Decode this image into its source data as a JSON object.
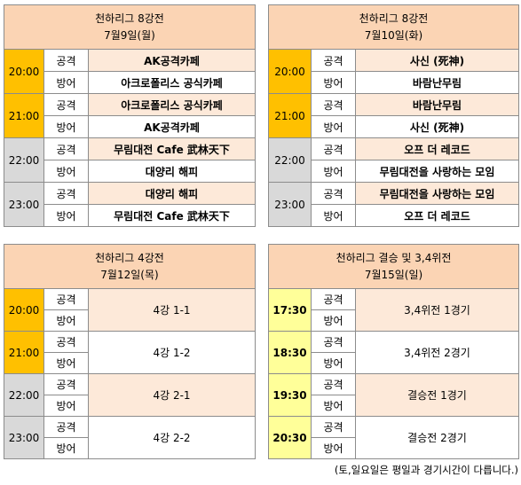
{
  "tables": [
    {
      "title": "천하리그 8강전",
      "date": "7월9일(월)",
      "slots": [
        {
          "time": "20:00",
          "rows": [
            {
              "role": "공격",
              "team": "AK공격카페"
            },
            {
              "role": "방어",
              "team": "아크로폴리스 공식카페"
            }
          ]
        },
        {
          "time": "21:00",
          "rows": [
            {
              "role": "공격",
              "team": "아크로폴리스 공식카페"
            },
            {
              "role": "방어",
              "team": "AK공격카페"
            }
          ]
        },
        {
          "time": "22:00",
          "rows": [
            {
              "role": "공격",
              "team": "무림대전 Cafe 武林天下"
            },
            {
              "role": "방어",
              "team": "대양리 해피"
            }
          ]
        },
        {
          "time": "23:00",
          "rows": [
            {
              "role": "공격",
              "team": "대양리 해피"
            },
            {
              "role": "방어",
              "team": "무림대전 Cafe 武林天下"
            }
          ]
        }
      ]
    },
    {
      "title": "천하리그 8강전",
      "date": "7월10일(화)",
      "slots": [
        {
          "time": "20:00",
          "rows": [
            {
              "role": "공격",
              "team": "사신 (死神)"
            },
            {
              "role": "방어",
              "team": "바람난무림"
            }
          ]
        },
        {
          "time": "21:00",
          "rows": [
            {
              "role": "공격",
              "team": "바람난무림"
            },
            {
              "role": "방어",
              "team": "사신 (死神)"
            }
          ]
        },
        {
          "time": "22:00",
          "rows": [
            {
              "role": "공격",
              "team": "오프 더 레코드"
            },
            {
              "role": "방어",
              "team": "무림대전을 사랑하는 모임"
            }
          ]
        },
        {
          "time": "23:00",
          "rows": [
            {
              "role": "공격",
              "team": "무림대전을 사랑하는 모임"
            },
            {
              "role": "방어",
              "team": "오프 더 레코드"
            }
          ]
        }
      ]
    },
    {
      "title": "천하리그 4강전",
      "date": "7월12일(목)",
      "slots": [
        {
          "time": "20:00",
          "roles": [
            "공격",
            "방어"
          ],
          "match": "4강 1-1"
        },
        {
          "time": "21:00",
          "roles": [
            "공격",
            "방어"
          ],
          "match": "4강 1-2"
        },
        {
          "time": "22:00",
          "roles": [
            "공격",
            "방어"
          ],
          "match": "4강 2-1"
        },
        {
          "time": "23:00",
          "roles": [
            "공격",
            "방어"
          ],
          "match": "4강 2-2"
        }
      ]
    },
    {
      "title": "천하리그 결승 및 3,4위전",
      "date": "7월15일(일)",
      "slots": [
        {
          "time": "17:30",
          "roles": [
            "공격",
            "방어"
          ],
          "match": "3,4위전 1경기"
        },
        {
          "time": "18:30",
          "roles": [
            "공격",
            "방어"
          ],
          "match": "3,4위전 2경기"
        },
        {
          "time": "19:30",
          "roles": [
            "공격",
            "방어"
          ],
          "match": "결승전 1경기"
        },
        {
          "time": "20:30",
          "roles": [
            "공격",
            "방어"
          ],
          "match": "결승전 2경기"
        }
      ]
    }
  ],
  "note": "(토,일요일은 평일과 경기시간이 다릅니다.)",
  "colors": {
    "header": "#fbd4b4",
    "time_early": "#ffc000",
    "time_late": "#d9d9d9",
    "time_final": "#ffff99",
    "attack_row": "#fde9d9"
  }
}
